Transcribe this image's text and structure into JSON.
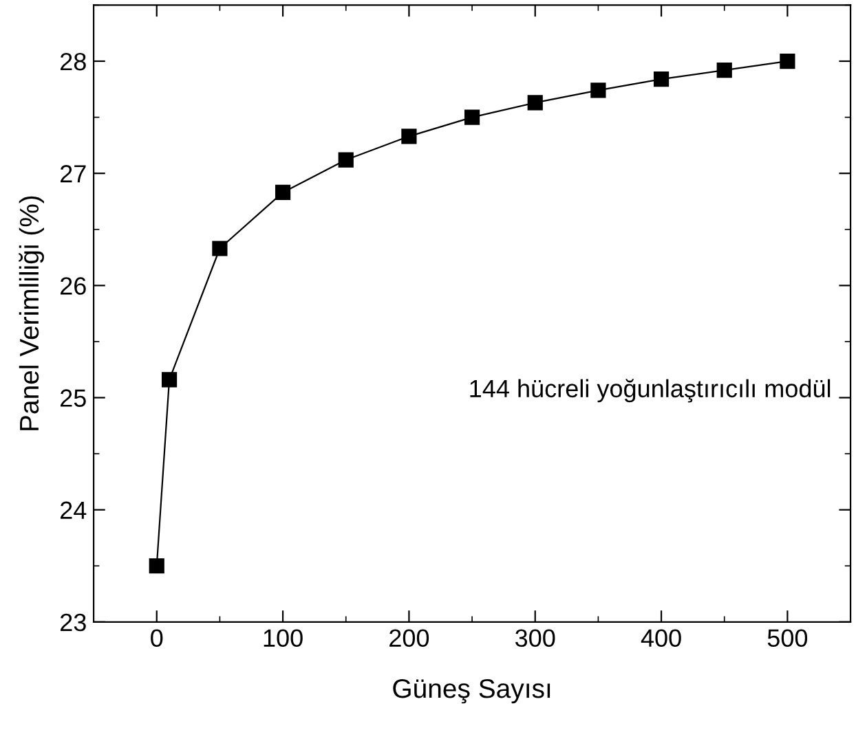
{
  "chart_data": {
    "type": "line",
    "xlabel": "Güneş Sayısı",
    "ylabel": "Panel Verimliliği (%)",
    "x": [
      0,
      10,
      50,
      100,
      150,
      200,
      250,
      300,
      350,
      400,
      450,
      500
    ],
    "series": [
      {
        "color": "#000000",
        "values": [
          23.5,
          25.16,
          26.33,
          26.83,
          27.12,
          27.33,
          27.5,
          27.63,
          27.74,
          27.84,
          27.92,
          28.0
        ]
      }
    ],
    "marker": "square",
    "line_style": "solid",
    "grid": false,
    "legend": false,
    "xlim": [
      -50,
      550
    ],
    "xticks": [
      0,
      100,
      200,
      300,
      400,
      500
    ],
    "ylim": [
      23,
      28.5
    ],
    "yticks": [
      23,
      24,
      25,
      26,
      27,
      28
    ],
    "annotations": [
      "144 hücreli yoğunlaştırıcılı modül"
    ]
  }
}
